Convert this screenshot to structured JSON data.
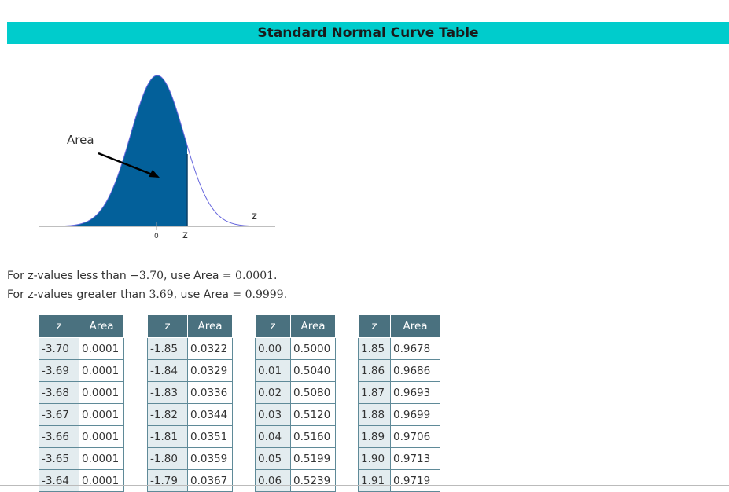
{
  "title": "Standard Normal Curve Table",
  "figure": {
    "area_label": "Area",
    "zero_label": "0",
    "z_below_label": "z",
    "z_axis_label": "z",
    "curve_color": "#6666dd",
    "fill_color": "#03609a"
  },
  "notes": [
    {
      "prefix": "For z-values less than ",
      "value": "−3.70",
      "middle": ", use Area = ",
      "area": "0.0001",
      "suffix": "."
    },
    {
      "prefix": "For z-values greater than ",
      "value": "3.69",
      "middle": ", use Area = ",
      "area": "0.9999",
      "suffix": "."
    }
  ],
  "colors": {
    "title_bg": "#00cccc",
    "header_bg": "#4a717f",
    "z_cell_bg": "#e3ecef",
    "border": "#5f8a98"
  },
  "tables": [
    {
      "header_z": "z",
      "header_area": "Area",
      "rows": [
        [
          "-3.70",
          "0.0001"
        ],
        [
          "-3.69",
          "0.0001"
        ],
        [
          "-3.68",
          "0.0001"
        ],
        [
          "-3.67",
          "0.0001"
        ],
        [
          "-3.66",
          "0.0001"
        ],
        [
          "-3.65",
          "0.0001"
        ],
        [
          "-3.64",
          "0.0001"
        ]
      ]
    },
    {
      "header_z": "z",
      "header_area": "Area",
      "rows": [
        [
          "-1.85",
          "0.0322"
        ],
        [
          "-1.84",
          "0.0329"
        ],
        [
          "-1.83",
          "0.0336"
        ],
        [
          "-1.82",
          "0.0344"
        ],
        [
          "-1.81",
          "0.0351"
        ],
        [
          "-1.80",
          "0.0359"
        ],
        [
          "-1.79",
          "0.0367"
        ]
      ]
    },
    {
      "header_z": "z",
      "header_area": "Area",
      "rows": [
        [
          "0.00",
          "0.5000"
        ],
        [
          "0.01",
          "0.5040"
        ],
        [
          "0.02",
          "0.5080"
        ],
        [
          "0.03",
          "0.5120"
        ],
        [
          "0.04",
          "0.5160"
        ],
        [
          "0.05",
          "0.5199"
        ],
        [
          "0.06",
          "0.5239"
        ]
      ]
    },
    {
      "header_z": "z",
      "header_area": "Area",
      "rows": [
        [
          "1.85",
          "0.9678"
        ],
        [
          "1.86",
          "0.9686"
        ],
        [
          "1.87",
          "0.9693"
        ],
        [
          "1.88",
          "0.9699"
        ],
        [
          "1.89",
          "0.9706"
        ],
        [
          "1.90",
          "0.9713"
        ],
        [
          "1.91",
          "0.9719"
        ]
      ]
    }
  ]
}
